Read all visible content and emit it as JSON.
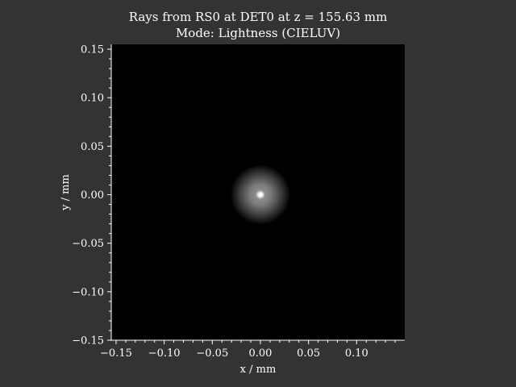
{
  "title": {
    "line1": "Rays from RS0 at DET0 at z = 155.63 mm",
    "line2": "Mode: Lightness (CIELUV)"
  },
  "colors": {
    "figure_bg": "#333333",
    "plot_bg": "#000000",
    "axis": "#ffffff",
    "spot": "#ffffff"
  },
  "chart_data": {
    "type": "heatmap",
    "title": "Rays from RS0 at DET0 at z = 155.63 mm\nMode: Lightness (CIELUV)",
    "xlabel": "x / mm",
    "ylabel": "y / mm",
    "xlim": [
      -0.155,
      0.15
    ],
    "ylim": [
      -0.15,
      0.155
    ],
    "x_ticks": [
      -0.15,
      -0.1,
      -0.05,
      0.0,
      0.05,
      0.1
    ],
    "x_tick_labels": [
      "−0.15",
      "−0.10",
      "−0.05",
      "0.00",
      "0.05",
      "0.10"
    ],
    "y_ticks": [
      0.15,
      0.1,
      0.05,
      0.0,
      -0.05,
      -0.1,
      -0.15
    ],
    "y_tick_labels": [
      "0.15",
      "0.10",
      "0.05",
      "0.00",
      "−0.05",
      "−0.10",
      "−0.15"
    ],
    "minor_ticks": true,
    "grid": false,
    "colormap": "gray",
    "spot": {
      "center_x": 0.0,
      "center_y": 0.0,
      "halo_radius": 0.025,
      "core_radius": 0.002
    }
  }
}
